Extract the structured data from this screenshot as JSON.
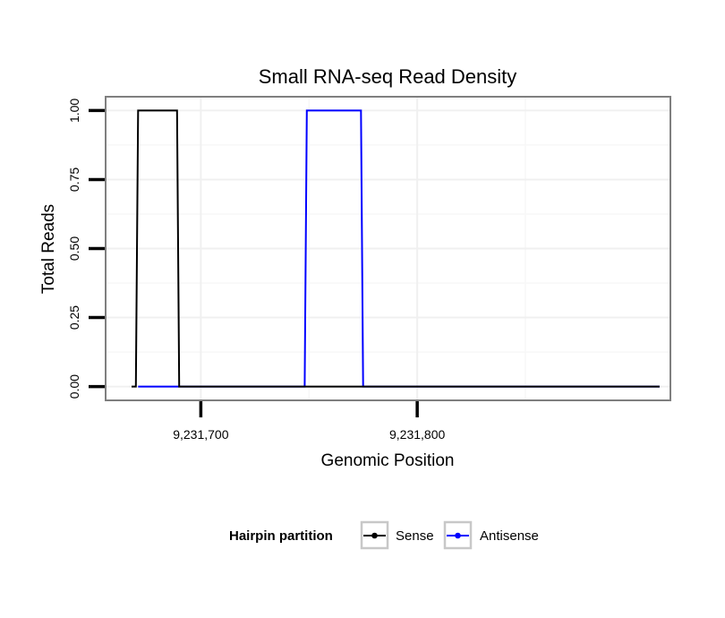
{
  "chart_data": {
    "type": "line",
    "title": "Small RNA-seq Read Density",
    "xlabel": "Genomic Position",
    "ylabel": "Total Reads",
    "xlim": [
      9231656,
      9231917
    ],
    "ylim": [
      -0.05,
      1.05
    ],
    "x_ticks": [
      9231700,
      9231800
    ],
    "x_tick_labels": [
      "9,231,700",
      "9,231,800"
    ],
    "y_ticks": [
      0,
      0.25,
      0.5,
      0.75,
      1.0
    ],
    "y_tick_labels": [
      "0.00",
      "0.25",
      "0.50",
      "0.75",
      "1.00"
    ],
    "grid": true,
    "legend_title": "Hairpin partition",
    "legend_position": "bottom",
    "series": [
      {
        "name": "Sense",
        "color": "#000000",
        "points": [
          [
            9231668,
            0
          ],
          [
            9231670,
            0
          ],
          [
            9231671,
            1
          ],
          [
            9231689,
            1
          ],
          [
            9231690,
            0
          ],
          [
            9231912,
            0
          ]
        ]
      },
      {
        "name": "Antisense",
        "color": "#0000ff",
        "points": [
          [
            9231671,
            0
          ],
          [
            9231689,
            0
          ],
          [
            9231690,
            0
          ],
          [
            9231748,
            0
          ],
          [
            9231749,
            1
          ],
          [
            9231774,
            1
          ],
          [
            9231775,
            0
          ],
          [
            9231912,
            0
          ]
        ]
      }
    ]
  }
}
